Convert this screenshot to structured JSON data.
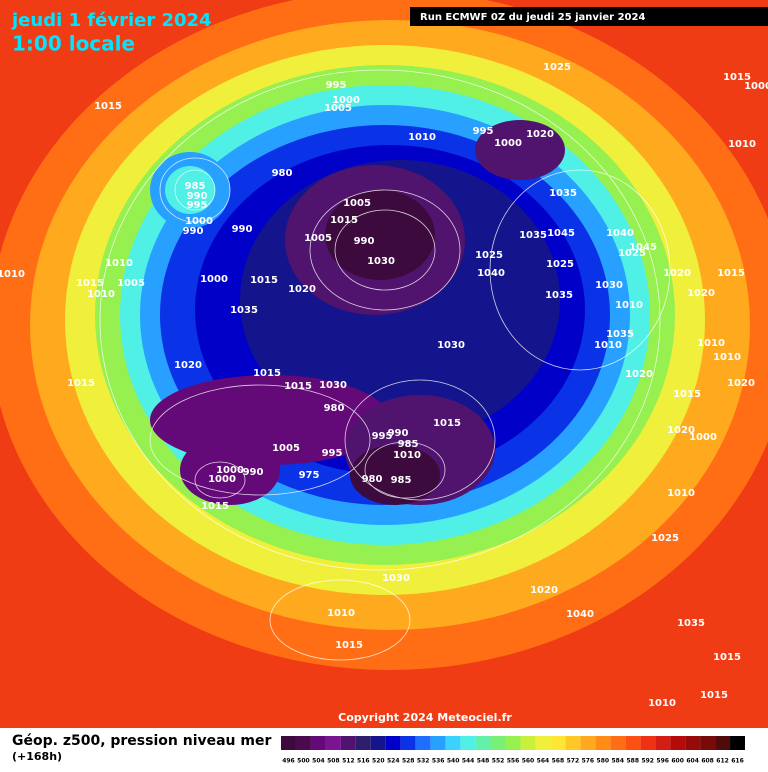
{
  "header": {
    "title": "jeudi 1 février 2024",
    "time": "1:00 locale",
    "run": "Run ECMWF 0Z du jeudi 25 janvier 2024"
  },
  "isobar_labels": [
    1015,
    995,
    1000,
    1005,
    1025,
    1015,
    1000,
    1010,
    995,
    1000,
    1020,
    1010,
    980,
    985,
    990,
    995,
    1000,
    990,
    990,
    1005,
    1015,
    1005,
    990,
    1030,
    1035,
    1035,
    1045,
    1040,
    1045,
    1025,
    1025,
    1040,
    1025,
    1020,
    1015,
    1010,
    1015,
    1010,
    1010,
    1005,
    1000,
    1015,
    1020,
    1035,
    1035,
    1030,
    1010,
    1020,
    1030,
    1035,
    1010,
    1010,
    1010,
    1020,
    1015,
    1015,
    1030,
    1020,
    1015,
    1020,
    1015,
    980,
    1015,
    1020,
    1000,
    995,
    990,
    985,
    1010,
    1005,
    995,
    1000,
    990,
    1000,
    975,
    980,
    985,
    1015,
    1010,
    1025,
    1030,
    1020,
    1040,
    1010,
    1035,
    1015,
    1015,
    1015,
    1010
  ],
  "copyright": "Copyright 2024 Meteociel.fr",
  "legend": {
    "title": "Géop. z500, pression niveau mer",
    "subtitle": "(+168h)",
    "colorbar": {
      "values": [
        496,
        500,
        504,
        508,
        512,
        516,
        520,
        524,
        528,
        532,
        536,
        540,
        544,
        548,
        552,
        556,
        560,
        564,
        568,
        572,
        576,
        580,
        584,
        588,
        592,
        596,
        600,
        604,
        608,
        612,
        616
      ],
      "colors": [
        "#3c0a3c",
        "#4b0a50",
        "#640a78",
        "#7a1490",
        "#50146e",
        "#2d1e6e",
        "#14148c",
        "#0000c8",
        "#0a32e6",
        "#1e6eff",
        "#28a0ff",
        "#3cd2ff",
        "#50f0e6",
        "#64f0aa",
        "#78f078",
        "#96f050",
        "#c8f03c",
        "#f0f03c",
        "#ffe632",
        "#ffc828",
        "#ffaa1e",
        "#ff8c14",
        "#ff6e14",
        "#ff5014",
        "#f03214",
        "#d21e14",
        "#b40a0a",
        "#960a0a",
        "#780a0a",
        "#500a0a",
        "#000000"
      ]
    }
  }
}
